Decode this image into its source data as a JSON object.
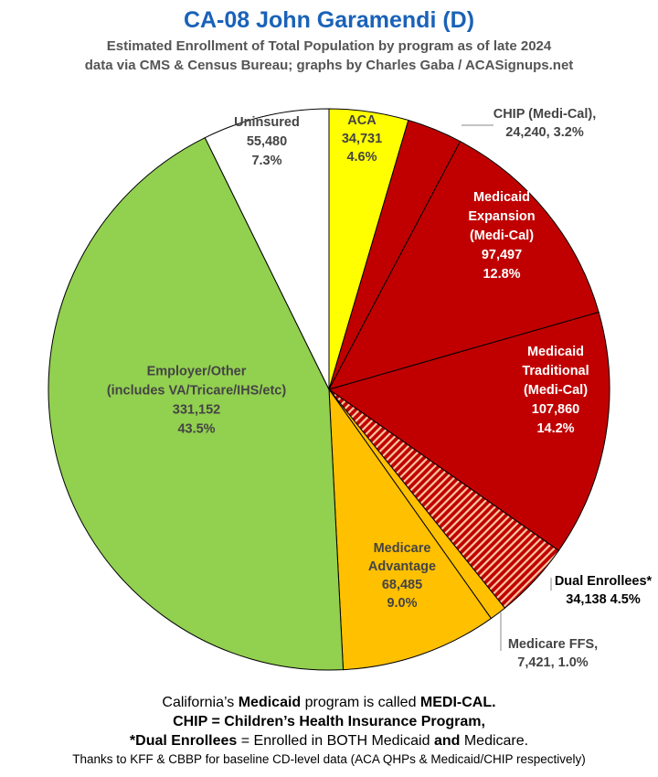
{
  "header": {
    "title": "CA-08 John Garamendi (D)",
    "subtitle1": "Estimated Enrollment of Total Population by program as of late 2024",
    "subtitle2": "data via CMS & Census Bureau; graphs by Charles Gaba / ACASignups.net"
  },
  "chart_data": {
    "type": "pie",
    "title": "CA-08 John Garamendi (D)",
    "start": "12 o'clock",
    "direction": "clockwise",
    "slices": [
      {
        "lines": [
          "ACA",
          "34,731",
          "4.6%"
        ],
        "value": 34731,
        "percent": 4.6,
        "color": "#ffff00",
        "text_color": "#444444"
      },
      {
        "lines": [
          "CHIP (Medi-Cal),",
          "24,240, 3.2%"
        ],
        "value": 24240,
        "percent": 3.2,
        "color": "#c00000",
        "text_color": "#444444"
      },
      {
        "lines": [
          "Medicaid",
          "Expansion",
          "(Medi-Cal)",
          "97,497",
          "12.8%"
        ],
        "value": 97497,
        "percent": 12.8,
        "color": "#c00000",
        "text_color": "#ffffff"
      },
      {
        "lines": [
          "Medicaid",
          "Traditional",
          "(Medi-Cal)",
          "107,860",
          "14.2%"
        ],
        "value": 107860,
        "percent": 14.2,
        "color": "#c00000",
        "text_color": "#ffffff"
      },
      {
        "lines": [
          "Dual Enrollees*",
          "34,138 4.5%"
        ],
        "value": 34138,
        "percent": 4.5,
        "color": "#c00000",
        "pattern": "hatch",
        "text_color": "#000000"
      },
      {
        "lines": [
          "Medicare FFS,",
          "7,421, 1.0%"
        ],
        "value": 7421,
        "percent": 1.0,
        "color": "#ffc000",
        "text_color": "#444444"
      },
      {
        "lines": [
          "Medicare",
          "Advantage",
          "68,485",
          "9.0%"
        ],
        "value": 68485,
        "percent": 9.0,
        "color": "#ffc000",
        "text_color": "#444444"
      },
      {
        "lines": [
          "Employer/Other",
          "(includes VA/Tricare/IHS/etc)",
          "331,152",
          "43.5%"
        ],
        "value": 331152,
        "percent": 43.5,
        "color": "#92d050",
        "text_color": "#444444"
      },
      {
        "lines": [
          "Uninsured",
          "55,480",
          "7.3%"
        ],
        "value": 55480,
        "percent": 7.3,
        "color": "#ffffff",
        "text_color": "#444444"
      }
    ]
  },
  "footer": {
    "line1_a": "California’s ",
    "line1_b": "Medicaid",
    "line1_c": " program is called ",
    "line1_d": "MEDI-CAL.",
    "line2": "CHIP = Children’s Health Insurance Program,",
    "line3_a": "*Dual Enrollees",
    "line3_b": " = Enrolled in BOTH Medicaid ",
    "line3_c": "and",
    "line3_d": " Medicare.",
    "line4": "Thanks to KFF & CBBP for baseline CD-level data (ACA QHPs & Medicaid/CHIP respectively)"
  }
}
